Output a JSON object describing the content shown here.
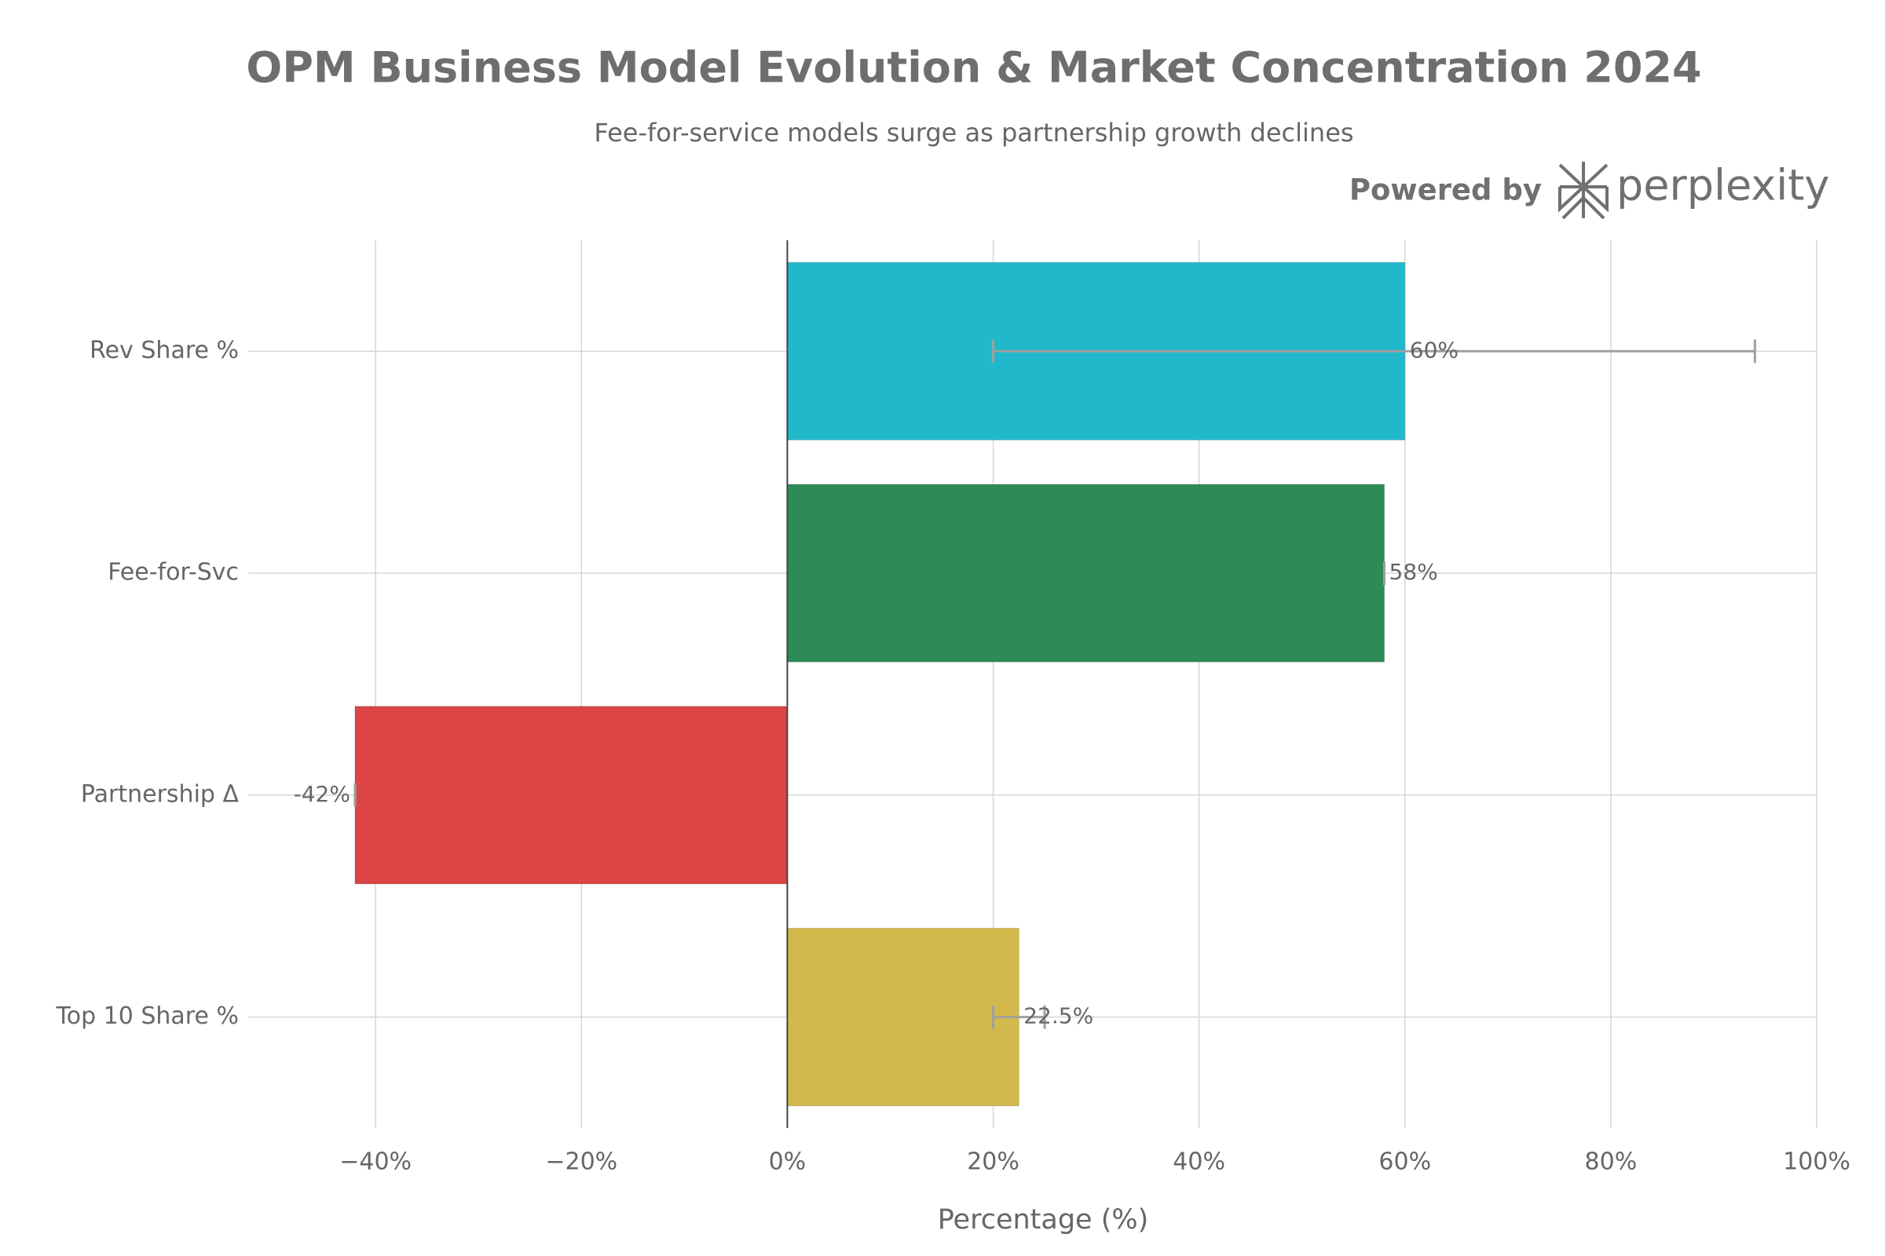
{
  "chart_data": {
    "type": "hbar",
    "title": "OPM Business Model Evolution & Market Concentration 2024",
    "subtitle": "Fee-for-service models surge as partnership growth declines",
    "branding": {
      "prefix": "Powered by",
      "name": "perplexity"
    },
    "x_label": "Percentage (%)",
    "categories": [
      "Rev Share %",
      "Fee-for-Svc",
      "Partnership Δ",
      "Top 10 Share %"
    ],
    "values": [
      60,
      58,
      -42,
      22.5
    ],
    "value_labels": [
      "60%",
      "58%",
      "-42%",
      "22.5%"
    ],
    "error_minus": [
      40,
      0,
      0,
      2.5
    ],
    "error_plus": [
      34,
      0,
      0,
      2.5
    ],
    "colors": [
      "#21b8cc",
      "#2e8b57",
      "#db4545",
      "#d2b94b"
    ],
    "error_color": "#a0a0a0",
    "xlim": [
      -51,
      100
    ],
    "xticks": [
      {
        "value": -40,
        "label": "−40%"
      },
      {
        "value": -20,
        "label": "−20%"
      },
      {
        "value": 0,
        "label": "0%"
      },
      {
        "value": 20,
        "label": "20%"
      },
      {
        "value": 40,
        "label": "40%"
      },
      {
        "value": 60,
        "label": "60%"
      },
      {
        "value": 80,
        "label": "80%"
      },
      {
        "value": 100,
        "label": "100%"
      }
    ],
    "grid": true
  }
}
